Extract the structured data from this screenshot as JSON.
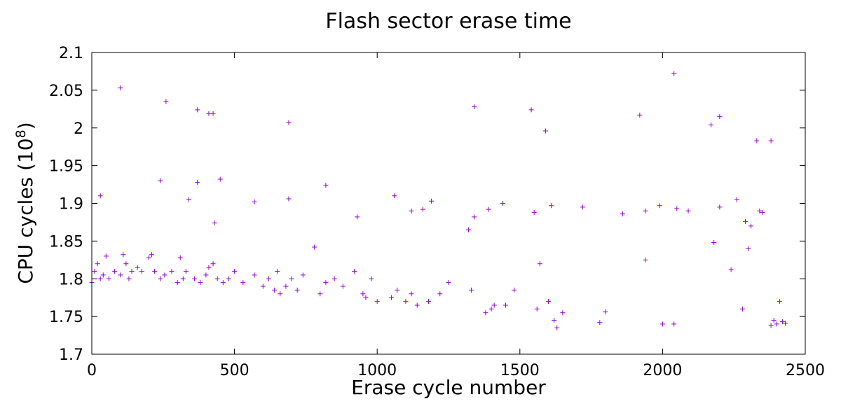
{
  "chart_data": {
    "type": "scatter",
    "title": "Flash sector erase time",
    "xlabel": "Erase cycle number",
    "ylabel": "CPU cycles (10",
    "ylabel_exponent": "8",
    "ylabel_suffix": ")",
    "xlim": [
      0,
      2500
    ],
    "ylim": [
      1.7,
      2.1
    ],
    "x_ticks": [
      "0",
      "500",
      "1000",
      "1500",
      "2000",
      "2500"
    ],
    "y_ticks": [
      "1.7",
      "1.75",
      "1.8",
      "1.85",
      "1.9",
      "1.95",
      "2",
      "2.05",
      "2.1"
    ],
    "grid": false,
    "legend": "none",
    "marker": "+",
    "color": "#9400d3",
    "series": [
      {
        "points": [
          [
            0,
            1.795
          ],
          [
            10,
            1.81
          ],
          [
            20,
            1.82
          ],
          [
            30,
            1.8
          ],
          [
            40,
            1.805
          ],
          [
            50,
            1.83
          ],
          [
            60,
            1.8
          ],
          [
            80,
            1.81
          ],
          [
            100,
            1.805
          ],
          [
            110,
            1.832
          ],
          [
            120,
            1.82
          ],
          [
            130,
            1.8
          ],
          [
            140,
            1.81
          ],
          [
            160,
            1.815
          ],
          [
            175,
            1.81
          ],
          [
            200,
            1.828
          ],
          [
            210,
            1.832
          ],
          [
            220,
            1.81
          ],
          [
            240,
            1.8
          ],
          [
            255,
            1.805
          ],
          [
            280,
            1.81
          ],
          [
            300,
            1.795
          ],
          [
            310,
            1.828
          ],
          [
            320,
            1.8
          ],
          [
            330,
            1.81
          ],
          [
            360,
            1.8
          ],
          [
            380,
            1.795
          ],
          [
            400,
            1.805
          ],
          [
            410,
            1.815
          ],
          [
            425,
            1.82
          ],
          [
            440,
            1.8
          ],
          [
            460,
            1.795
          ],
          [
            480,
            1.8
          ],
          [
            500,
            1.81
          ],
          [
            530,
            1.795
          ],
          [
            570,
            1.805
          ],
          [
            600,
            1.79
          ],
          [
            620,
            1.8
          ],
          [
            640,
            1.785
          ],
          [
            650,
            1.81
          ],
          [
            660,
            1.78
          ],
          [
            680,
            1.79
          ],
          [
            700,
            1.8
          ],
          [
            720,
            1.785
          ],
          [
            740,
            1.805
          ],
          [
            780,
            1.842
          ],
          [
            800,
            1.78
          ],
          [
            820,
            1.795
          ],
          [
            850,
            1.8
          ],
          [
            880,
            1.79
          ],
          [
            920,
            1.81
          ],
          [
            950,
            1.78
          ],
          [
            960,
            1.775
          ],
          [
            980,
            1.8
          ],
          [
            1000,
            1.77
          ],
          [
            1050,
            1.775
          ],
          [
            1070,
            1.785
          ],
          [
            1100,
            1.77
          ],
          [
            1120,
            1.78
          ],
          [
            1140,
            1.765
          ],
          [
            1180,
            1.77
          ],
          [
            1220,
            1.78
          ],
          [
            1250,
            1.795
          ],
          [
            1330,
            1.785
          ],
          [
            1380,
            1.755
          ],
          [
            1400,
            1.76
          ],
          [
            1410,
            1.765
          ],
          [
            1450,
            1.765
          ],
          [
            1480,
            1.785
          ],
          [
            1560,
            1.76
          ],
          [
            1570,
            1.82
          ],
          [
            1600,
            1.77
          ],
          [
            1620,
            1.745
          ],
          [
            1630,
            1.735
          ],
          [
            1650,
            1.755
          ],
          [
            1780,
            1.742
          ],
          [
            1800,
            1.756
          ],
          [
            1940,
            1.825
          ],
          [
            2000,
            1.74
          ],
          [
            2040,
            1.74
          ],
          [
            2180,
            1.848
          ],
          [
            2240,
            1.812
          ],
          [
            2280,
            1.76
          ],
          [
            2300,
            1.84
          ],
          [
            2380,
            1.738
          ],
          [
            2390,
            1.745
          ],
          [
            2400,
            1.74
          ],
          [
            2410,
            1.77
          ],
          [
            2420,
            1.743
          ],
          [
            2430,
            1.741
          ],
          [
            100,
            2.053
          ],
          [
            260,
            2.035
          ],
          [
            370,
            2.024
          ],
          [
            410,
            2.019
          ],
          [
            425,
            2.019
          ],
          [
            690,
            2.007
          ],
          [
            1340,
            2.028
          ],
          [
            1540,
            2.024
          ],
          [
            1590,
            1.996
          ],
          [
            1920,
            2.017
          ],
          [
            2040,
            2.072
          ],
          [
            2170,
            2.004
          ],
          [
            2200,
            2.015
          ],
          [
            2330,
            1.983
          ],
          [
            2380,
            1.983
          ],
          [
            30,
            1.91
          ],
          [
            240,
            1.93
          ],
          [
            340,
            1.905
          ],
          [
            370,
            1.928
          ],
          [
            430,
            1.874
          ],
          [
            450,
            1.932
          ],
          [
            570,
            1.902
          ],
          [
            690,
            1.906
          ],
          [
            820,
            1.924
          ],
          [
            930,
            1.882
          ],
          [
            1060,
            1.91
          ],
          [
            1120,
            1.89
          ],
          [
            1160,
            1.892
          ],
          [
            1190,
            1.903
          ],
          [
            1320,
            1.865
          ],
          [
            1340,
            1.882
          ],
          [
            1390,
            1.892
          ],
          [
            1440,
            1.9
          ],
          [
            1550,
            1.888
          ],
          [
            1610,
            1.897
          ],
          [
            1720,
            1.895
          ],
          [
            1860,
            1.886
          ],
          [
            1940,
            1.89
          ],
          [
            1990,
            1.897
          ],
          [
            2050,
            1.893
          ],
          [
            2090,
            1.89
          ],
          [
            2200,
            1.895
          ],
          [
            2260,
            1.905
          ],
          [
            2290,
            1.876
          ],
          [
            2310,
            1.87
          ],
          [
            2340,
            1.89
          ],
          [
            2350,
            1.888
          ]
        ]
      }
    ]
  }
}
